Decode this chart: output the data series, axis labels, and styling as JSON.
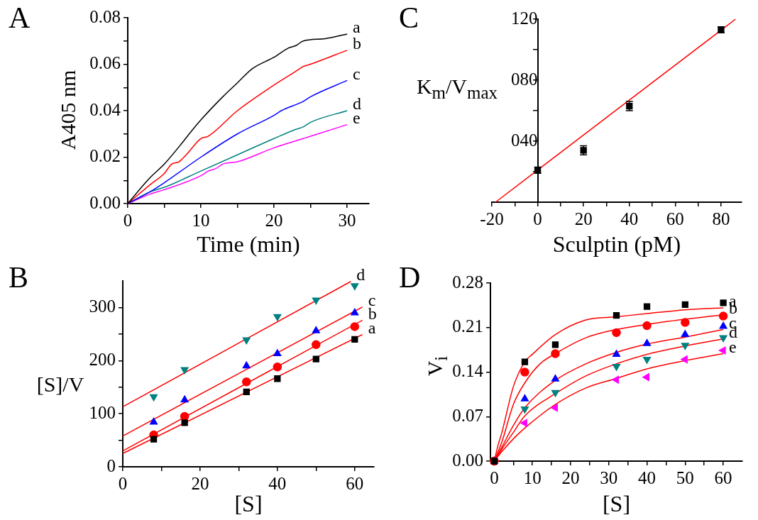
{
  "chart_data": [
    {
      "type": "line",
      "title": "A",
      "xlabel": "Time (min)",
      "ylabel": "A405 nm",
      "xlim": [
        0,
        33
      ],
      "xticks": [
        0,
        {
          "value": 5,
          "label": null
        },
        10,
        {
          "value": 15,
          "label": null
        },
        20,
        {
          "value": 25,
          "label": null
        },
        30
      ],
      "ylim": [
        0,
        0.08
      ],
      "yticks": [
        {
          "value": 0,
          "label": "0.00"
        },
        {
          "value": 0.01,
          "label": null
        },
        0.02,
        {
          "value": 0.03,
          "label": null
        },
        0.04,
        {
          "value": 0.05,
          "label": null
        },
        0.06,
        {
          "value": 0.07,
          "label": null
        },
        0.08
      ],
      "marker": "none",
      "series": [
        {
          "name": "a",
          "color": "#000000",
          "x": [
            0,
            3,
            5,
            10,
            13,
            15,
            17,
            20,
            22,
            23,
            24,
            27,
            30
          ],
          "values": [
            0,
            0.011,
            0.017,
            0.036,
            0.046,
            0.052,
            0.058,
            0.063,
            0.067,
            0.068,
            0.07,
            0.071,
            0.073
          ]
        },
        {
          "name": "b",
          "color": "#ff0000",
          "x": [
            0,
            3,
            5,
            6,
            7,
            8,
            10,
            11,
            15,
            20,
            22,
            23,
            24,
            25,
            30
          ],
          "values": [
            0,
            0.008,
            0.013,
            0.017,
            0.018,
            0.021,
            0.028,
            0.029,
            0.04,
            0.051,
            0.055,
            0.057,
            0.059,
            0.06,
            0.066
          ]
        },
        {
          "name": "c",
          "color": "#0000ff",
          "x": [
            0,
            3,
            5,
            10,
            15,
            20,
            21,
            24,
            25,
            30
          ],
          "values": [
            0,
            0.005,
            0.009,
            0.02,
            0.03,
            0.038,
            0.04,
            0.044,
            0.046,
            0.053
          ]
        },
        {
          "name": "d",
          "color": "#008080",
          "x": [
            0,
            3,
            5,
            10,
            15,
            20,
            23,
            24,
            25,
            30
          ],
          "values": [
            0,
            0.005,
            0.007,
            0.014,
            0.021,
            0.028,
            0.032,
            0.033,
            0.035,
            0.04
          ]
        },
        {
          "name": "e",
          "color": "#ff00ff",
          "x": [
            0,
            3,
            5,
            10,
            11,
            12,
            13,
            15,
            20,
            24,
            25,
            30
          ],
          "values": [
            0,
            0.004,
            0.006,
            0.012,
            0.014,
            0.015,
            0.017,
            0.018,
            0.024,
            0.028,
            0.029,
            0.034
          ]
        }
      ]
    },
    {
      "type": "scatter",
      "title": "C",
      "xlabel": "Sculptin (pM)",
      "ylabel": "K$_{m}$/V$_{max}$",
      "xlim": [
        -20,
        89
      ],
      "xticks": [
        -20,
        {
          "value": -10,
          "label": null
        },
        0,
        {
          "value": 10,
          "label": null
        },
        20,
        {
          "value": 30,
          "label": null
        },
        40,
        {
          "value": 50,
          "label": null
        },
        60,
        {
          "value": 70,
          "label": null
        },
        80
      ],
      "ylim": [
        0,
        120
      ],
      "yticks": [
        {
          "value": 20,
          "label": null
        },
        {
          "value": 40,
          "label": "040"
        },
        {
          "value": 60,
          "label": null
        },
        {
          "value": 80,
          "label": "080"
        },
        {
          "value": 100,
          "label": null
        },
        120
      ],
      "series": [
        {
          "color": "#000000",
          "marker": "square",
          "x": [
            0,
            20,
            40,
            80
          ],
          "values": [
            21,
            34,
            63,
            113
          ],
          "errors": [
            2,
            3,
            3,
            2
          ]
        },
        {
          "type": "line",
          "color": "#ff0000",
          "marker": "none",
          "x": [
            -18.4,
            86.3
          ],
          "values": [
            0,
            120
          ]
        }
      ]
    },
    {
      "type": "scatter",
      "title": "B",
      "xlabel": "[S]",
      "ylabel": "[S]/V",
      "xlim": [
        0,
        65
      ],
      "xticks": [
        0,
        {
          "value": 10,
          "label": null
        },
        20,
        {
          "value": 30,
          "label": null
        },
        40,
        {
          "value": 50,
          "label": null
        },
        60
      ],
      "ylim": [
        0,
        350
      ],
      "yticks": [
        0,
        {
          "value": 50,
          "label": null
        },
        100,
        {
          "value": 150,
          "label": null
        },
        200,
        {
          "value": 250,
          "label": null
        },
        300
      ],
      "x": [
        8,
        16,
        32,
        40,
        50,
        60
      ],
      "series": [
        {
          "color": "#000000",
          "marker": "square",
          "values": [
            52,
            83,
            141,
            166,
            203,
            240
          ]
        },
        {
          "color": "#ff0000",
          "marker": "circle",
          "values": [
            60,
            95,
            160,
            188,
            230,
            264
          ]
        },
        {
          "color": "#0000ff",
          "marker": "triangle",
          "values": [
            84,
            126,
            190,
            213,
            256,
            290
          ]
        },
        {
          "color": "#008080",
          "marker": "triangle-down",
          "values": [
            132,
            183,
            239,
            283,
            314,
            341
          ]
        },
        {
          "type": "line",
          "name": "a",
          "color": "#ff0000",
          "marker": "none",
          "x": [
            0,
            62
          ],
          "values": [
            25,
            249
          ]
        },
        {
          "type": "line",
          "name": "b",
          "color": "#ff0000",
          "marker": "none",
          "x": [
            0,
            62
          ],
          "values": [
            30,
            276
          ]
        },
        {
          "type": "line",
          "name": "c",
          "color": "#ff0000",
          "marker": "none",
          "x": [
            0,
            62
          ],
          "values": [
            58,
            301
          ]
        },
        {
          "type": "line",
          "name": "d",
          "color": "#ff0000",
          "marker": "none",
          "x": [
            0,
            59
          ],
          "values": [
            113,
            349
          ]
        }
      ]
    },
    {
      "type": "scatter",
      "title": "D",
      "xlabel": "[S]",
      "ylabel": "V$_{i}$",
      "xlim": [
        -1,
        65
      ],
      "xticks": [
        0,
        {
          "value": 5,
          "label": null
        },
        10,
        {
          "value": 15,
          "label": null
        },
        20,
        {
          "value": 25,
          "label": null
        },
        30,
        {
          "value": 35,
          "label": null
        },
        40,
        {
          "value": 45,
          "label": null
        },
        50,
        {
          "value": 55,
          "label": null
        },
        60
      ],
      "ylim": [
        0,
        0.28
      ],
      "yticks": [
        {
          "value": 0,
          "label": "0.00"
        },
        0.07,
        0.14,
        0.21,
        0.28
      ],
      "x": [
        0,
        8,
        16,
        32,
        40,
        50,
        60
      ],
      "series": [
        {
          "color": "#000000",
          "marker": "square",
          "values": [
            0,
            0.156,
            0.183,
            0.229,
            0.243,
            0.246,
            0.249
          ]
        },
        {
          "color": "#ff0000",
          "marker": "circle",
          "values": [
            0,
            0.14,
            0.169,
            0.202,
            0.213,
            0.218,
            0.228
          ]
        },
        {
          "color": "#0000ff",
          "marker": "triangle",
          "values": [
            0,
            0.098,
            0.129,
            0.168,
            0.185,
            0.199,
            0.212
          ]
        },
        {
          "color": "#008080",
          "marker": "triangle-down",
          "values": [
            0,
            0.082,
            0.108,
            0.149,
            0.16,
            0.182,
            0.194
          ]
        },
        {
          "color": "#ff00ff",
          "marker": "triangle-left",
          "values": [
            0,
            0.06,
            0.084,
            0.128,
            0.132,
            0.16,
            0.174
          ]
        },
        {
          "type": "line",
          "name": "a",
          "color": "#ff0000",
          "marker": "none",
          "x": [
            0,
            1,
            2,
            5,
            8,
            10,
            16,
            24,
            32,
            40,
            50,
            60
          ],
          "values": [
            0,
            0.025,
            0.045,
            0.117,
            0.156,
            0.168,
            0.199,
            0.222,
            0.227,
            0.232,
            0.238,
            0.241
          ]
        },
        {
          "type": "line",
          "name": "b",
          "color": "#ff0000",
          "marker": "none",
          "x": [
            0,
            2,
            5,
            8,
            12,
            16,
            24,
            32,
            40,
            50,
            60
          ],
          "values": [
            0,
            0.03,
            0.089,
            0.123,
            0.153,
            0.169,
            0.194,
            0.207,
            0.215,
            0.223,
            0.23
          ]
        },
        {
          "type": "line",
          "name": "c",
          "color": "#ff0000",
          "marker": "none",
          "x": [
            0,
            2,
            5,
            8,
            16,
            24,
            32,
            40,
            50,
            60
          ],
          "values": [
            0,
            0.022,
            0.056,
            0.084,
            0.127,
            0.153,
            0.171,
            0.184,
            0.195,
            0.207
          ]
        },
        {
          "type": "line",
          "name": "d",
          "color": "#ff0000",
          "marker": "none",
          "x": [
            0,
            2,
            5,
            8,
            16,
            24,
            32,
            40,
            50,
            60
          ],
          "values": [
            0,
            0.019,
            0.045,
            0.071,
            0.106,
            0.134,
            0.153,
            0.168,
            0.181,
            0.192
          ]
        },
        {
          "type": "line",
          "name": "e",
          "color": "#ff0000",
          "marker": "none",
          "x": [
            0,
            2,
            5,
            8,
            16,
            24,
            32,
            40,
            50,
            60
          ],
          "values": [
            0,
            0.015,
            0.035,
            0.052,
            0.089,
            0.115,
            0.13,
            0.145,
            0.158,
            0.169
          ]
        }
      ]
    }
  ]
}
